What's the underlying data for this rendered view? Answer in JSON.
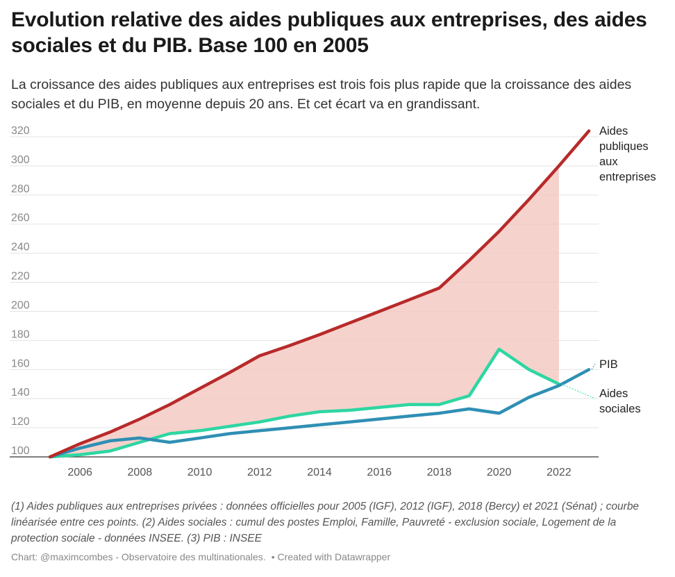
{
  "title": "Evolution relative des aides publiques aux entreprises, des aides sociales et du PIB. Base 100 en 2005",
  "subtitle": "La croissance des aides publiques aux entreprises est trois fois plus rapide que la croissance des aides sociales et du PIB, en moyenne depuis 20 ans. Et cet écart va en grandissant.",
  "notes": "(1) Aides publiques aux entreprises privées : données officielles pour 2005 (IGF), 2012 (IGF), 2018 (Bercy) et 2021 (Sénat) ; courbe linéarisée entre ces points. (2) Aides sociales : cumul des postes Emploi, Famille, Pauvreté - exclusion sociale, Logement de la protection sociale - données INSEE. (3) PIB : INSEE",
  "credit": {
    "source": "Chart: @maximcombes - Observatoire des multinationales.",
    "tool": "• Created with Datawrapper"
  },
  "colors": {
    "aides_entreprises": "#b82a2a",
    "aides_sociales": "#2ed6a2",
    "pib": "#2f8fb4",
    "area_fill": "#f4c7bf"
  },
  "chart_data": {
    "type": "line",
    "x": [
      2005,
      2006,
      2007,
      2008,
      2009,
      2010,
      2011,
      2012,
      2013,
      2014,
      2015,
      2016,
      2017,
      2018,
      2019,
      2020,
      2021,
      2022,
      2023
    ],
    "xticks": [
      "2006",
      "2008",
      "2010",
      "2012",
      "2014",
      "2016",
      "2018",
      "2020",
      "2022"
    ],
    "yticks": [
      "100",
      "120",
      "140",
      "160",
      "180",
      "200",
      "220",
      "240",
      "260",
      "280",
      "300",
      "320"
    ],
    "ylim": [
      100,
      320
    ],
    "xlim": [
      2005,
      2023
    ],
    "grid": true,
    "shaded_area": {
      "between": [
        "Aides publiques aux entreprises",
        "Aides sociales"
      ],
      "x_range": [
        2005,
        2022
      ]
    },
    "series": [
      {
        "name": "Aides publiques aux entreprises",
        "label_lines": [
          "Aides",
          "publiques",
          "aux",
          "entreprises"
        ],
        "color": "#b82a2a",
        "values": [
          100,
          109,
          117,
          126,
          136,
          147,
          158,
          169.5,
          176.5,
          184,
          192,
          200,
          208,
          216,
          235,
          255,
          277,
          300,
          324
        ]
      },
      {
        "name": "Aides sociales",
        "label_lines": [
          "Aides",
          "sociales"
        ],
        "color": "#2ed6a2",
        "values": [
          100,
          101.5,
          104,
          110,
          116,
          118,
          121,
          124,
          128,
          131,
          132,
          134,
          136,
          136,
          142,
          174,
          160,
          150,
          null
        ]
      },
      {
        "name": "PIB",
        "label_lines": [
          "PIB"
        ],
        "color": "#2f8fb4",
        "values": [
          100,
          106,
          111,
          113,
          110,
          113,
          116,
          118,
          120,
          122,
          124,
          126,
          128,
          130,
          133,
          130,
          141,
          149,
          160
        ]
      }
    ]
  }
}
